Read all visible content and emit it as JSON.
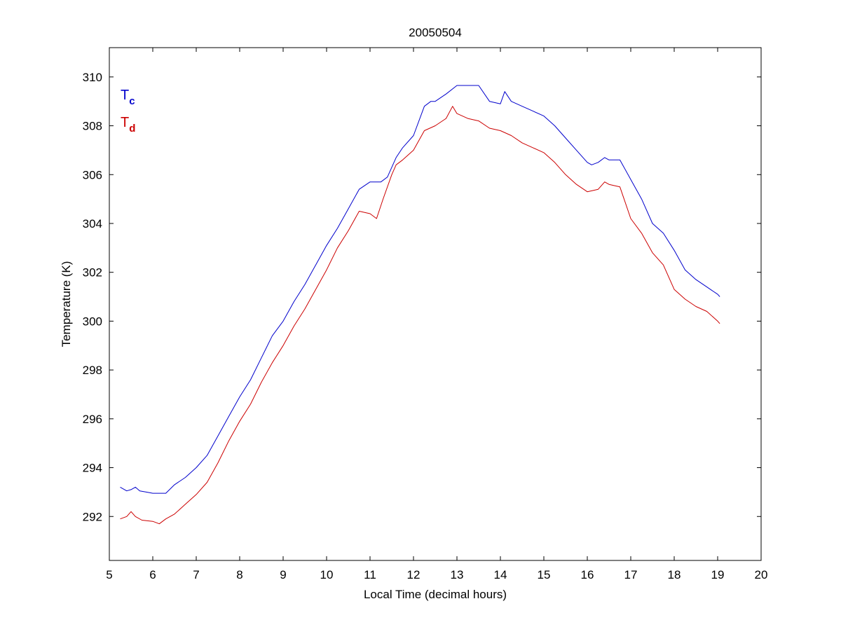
{
  "chart_data": {
    "type": "line",
    "title": "20050504",
    "xlabel": "Local Time (decimal hours)",
    "ylabel": "Temperature (K)",
    "xlim": [
      5,
      20
    ],
    "ylim": [
      290.2,
      311.2
    ],
    "xticks": [
      5,
      6,
      7,
      8,
      9,
      10,
      11,
      12,
      13,
      14,
      15,
      16,
      17,
      18,
      19,
      20
    ],
    "yticks": [
      292,
      294,
      296,
      298,
      300,
      302,
      304,
      306,
      308,
      310
    ],
    "grid": false,
    "legend_position": "top-left",
    "series": [
      {
        "name": "T",
        "subscript": "c",
        "color": "#0000cc",
        "x": [
          5.25,
          5.4,
          5.5,
          5.6,
          5.7,
          5.85,
          6.0,
          6.15,
          6.3,
          6.5,
          6.75,
          7.0,
          7.25,
          7.5,
          7.75,
          8.0,
          8.25,
          8.5,
          8.75,
          9.0,
          9.25,
          9.5,
          9.75,
          10.0,
          10.25,
          10.5,
          10.75,
          11.0,
          11.15,
          11.25,
          11.4,
          11.5,
          11.6,
          11.75,
          12.0,
          12.25,
          12.4,
          12.5,
          12.75,
          13.0,
          13.25,
          13.5,
          13.75,
          14.0,
          14.1,
          14.25,
          14.5,
          14.75,
          15.0,
          15.25,
          15.5,
          15.75,
          16.0,
          16.1,
          16.25,
          16.4,
          16.5,
          16.6,
          16.75,
          17.0,
          17.25,
          17.5,
          17.75,
          18.0,
          18.25,
          18.5,
          18.75,
          19.0,
          19.05
        ],
        "y": [
          293.2,
          293.05,
          293.1,
          293.2,
          293.05,
          293.0,
          292.95,
          292.95,
          292.95,
          293.3,
          293.6,
          294.0,
          294.5,
          295.3,
          296.1,
          296.9,
          297.6,
          298.5,
          299.4,
          300.0,
          300.8,
          301.5,
          302.3,
          303.1,
          303.8,
          304.6,
          305.4,
          305.7,
          305.7,
          305.7,
          305.9,
          306.3,
          306.7,
          307.1,
          307.6,
          308.8,
          309.0,
          309.0,
          309.3,
          309.65,
          309.65,
          309.65,
          309.0,
          308.9,
          309.4,
          309.0,
          308.8,
          308.6,
          308.4,
          308.0,
          307.5,
          307.0,
          306.5,
          306.4,
          306.5,
          306.7,
          306.6,
          306.6,
          306.6,
          305.8,
          305.0,
          304.0,
          303.6,
          302.9,
          302.1,
          301.7,
          301.4,
          301.1,
          301.0
        ]
      },
      {
        "name": "T",
        "subscript": "d",
        "color": "#cc0000",
        "x": [
          5.25,
          5.4,
          5.5,
          5.6,
          5.75,
          6.0,
          6.15,
          6.3,
          6.5,
          6.75,
          7.0,
          7.25,
          7.5,
          7.75,
          8.0,
          8.25,
          8.5,
          8.75,
          9.0,
          9.25,
          9.5,
          9.75,
          10.0,
          10.25,
          10.5,
          10.75,
          11.0,
          11.15,
          11.3,
          11.5,
          11.6,
          11.75,
          12.0,
          12.25,
          12.5,
          12.75,
          12.9,
          13.0,
          13.25,
          13.5,
          13.75,
          14.0,
          14.25,
          14.5,
          14.75,
          15.0,
          15.25,
          15.5,
          15.75,
          16.0,
          16.25,
          16.4,
          16.5,
          16.75,
          17.0,
          17.25,
          17.5,
          17.75,
          18.0,
          18.25,
          18.5,
          18.75,
          19.0,
          19.05
        ],
        "y": [
          291.9,
          292.0,
          292.2,
          292.0,
          291.85,
          291.8,
          291.7,
          291.9,
          292.1,
          292.5,
          292.9,
          293.4,
          294.2,
          295.1,
          295.9,
          296.6,
          297.5,
          298.3,
          299.0,
          299.8,
          300.5,
          301.3,
          302.1,
          303.0,
          303.7,
          304.5,
          304.4,
          304.2,
          305.0,
          306.0,
          306.4,
          306.6,
          307.0,
          307.8,
          308.0,
          308.3,
          308.8,
          308.5,
          308.3,
          308.2,
          307.9,
          307.8,
          307.6,
          307.3,
          307.1,
          306.9,
          306.5,
          306.0,
          305.6,
          305.3,
          305.4,
          305.7,
          305.6,
          305.5,
          304.2,
          303.6,
          302.8,
          302.3,
          301.3,
          300.9,
          300.6,
          300.4,
          300.0,
          299.9
        ]
      }
    ]
  }
}
